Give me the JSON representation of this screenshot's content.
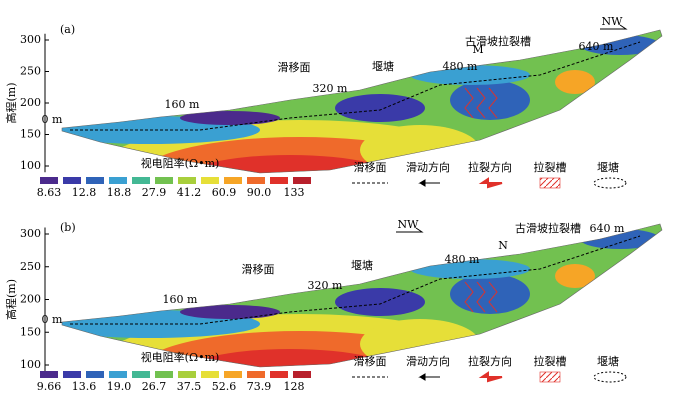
{
  "panels": [
    {
      "label": "(a)",
      "y_label": "高程(m)",
      "yticks": [
        100,
        150,
        200,
        250,
        300
      ],
      "annotations": [
        "0 m",
        "160 m",
        "滑移面",
        "320 m",
        "堰塘",
        "480 m",
        "M",
        "古滑坡拉裂槽",
        "640 m",
        "NW"
      ],
      "colorbar_title": "视电阻率(Ω•m)",
      "colorbar_labels": [
        "8.63",
        "12.8",
        "18.8",
        "27.9",
        "41.2",
        "60.9",
        "90.0",
        "133"
      ],
      "legend": [
        "滑移面",
        "滑动方向",
        "拉裂方向",
        "拉裂槽",
        "堰塘"
      ]
    },
    {
      "label": "(b)",
      "y_label": "高程(m)",
      "yticks": [
        100,
        150,
        200,
        250,
        300
      ],
      "annotations": [
        "0 m",
        "160 m",
        "滑移面",
        "320 m",
        "堰塘",
        "480 m",
        "N",
        "古滑坡拉裂槽",
        "640 m",
        "NW"
      ],
      "colorbar_title": "视电阻率(Ω•m)",
      "colorbar_labels": [
        "9.66",
        "13.6",
        "19.0",
        "26.7",
        "37.5",
        "52.6",
        "73.9",
        "128"
      ],
      "legend": [
        "滑移面",
        "滑动方向",
        "拉裂方向",
        "拉裂槽",
        "堰塘"
      ]
    }
  ]
}
